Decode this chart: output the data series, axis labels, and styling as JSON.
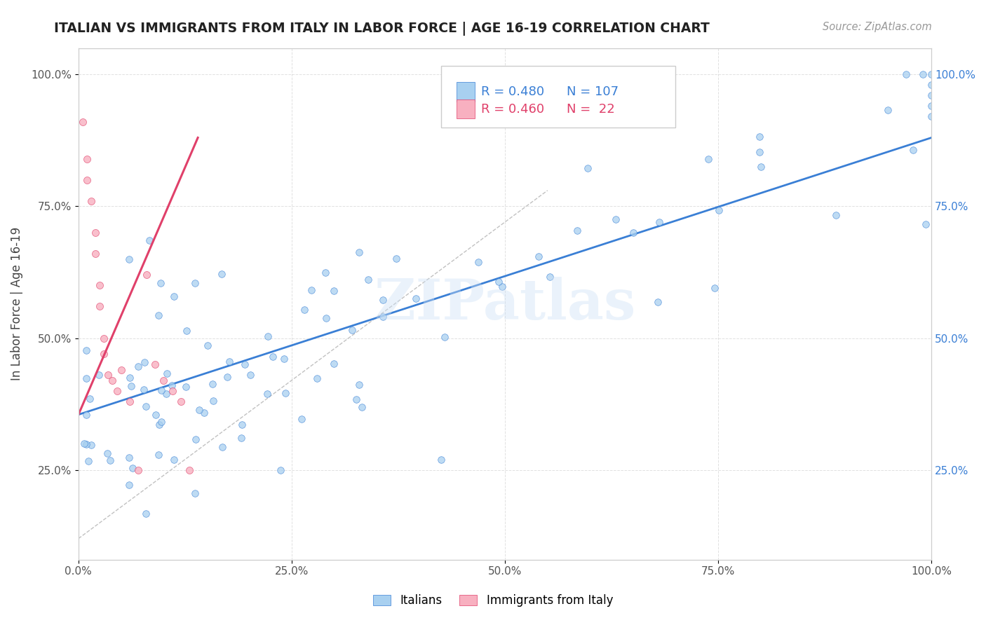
{
  "title": "ITALIAN VS IMMIGRANTS FROM ITALY IN LABOR FORCE | AGE 16-19 CORRELATION CHART",
  "source_text": "Source: ZipAtlas.com",
  "ylabel": "In Labor Force | Age 16-19",
  "watermark": "ZIPatlas",
  "legend_R_italians": "0.480",
  "legend_N_italians": "107",
  "legend_R_immigrants": "0.460",
  "legend_N_immigrants": "22",
  "italians_color": "#a8d0f0",
  "immigrants_color": "#f8b0c0",
  "trend_italians_color": "#3a7fd5",
  "trend_immigrants_color": "#e0406a",
  "background_color": "#ffffff",
  "grid_color": "#cccccc",
  "title_color": "#222222",
  "italians_trend_x": [
    0.0,
    1.0
  ],
  "italians_trend_y": [
    0.355,
    0.88
  ],
  "immigrants_trend_x": [
    0.0,
    0.14
  ],
  "immigrants_trend_y": [
    0.355,
    0.88
  ],
  "dashed_line_x": [
    0.0,
    0.55
  ],
  "dashed_line_y": [
    0.12,
    0.78
  ],
  "xtick_values": [
    0.0,
    0.25,
    0.5,
    0.75,
    1.0
  ],
  "xtick_labels": [
    "0.0%",
    "25.0%",
    "50.0%",
    "75.0%",
    "100.0%"
  ],
  "ytick_values": [
    0.25,
    0.5,
    0.75,
    1.0
  ],
  "ytick_labels": [
    "25.0%",
    "50.0%",
    "75.0%",
    "100.0%"
  ],
  "xlim": [
    0.0,
    1.0
  ],
  "ylim": [
    0.08,
    1.05
  ]
}
